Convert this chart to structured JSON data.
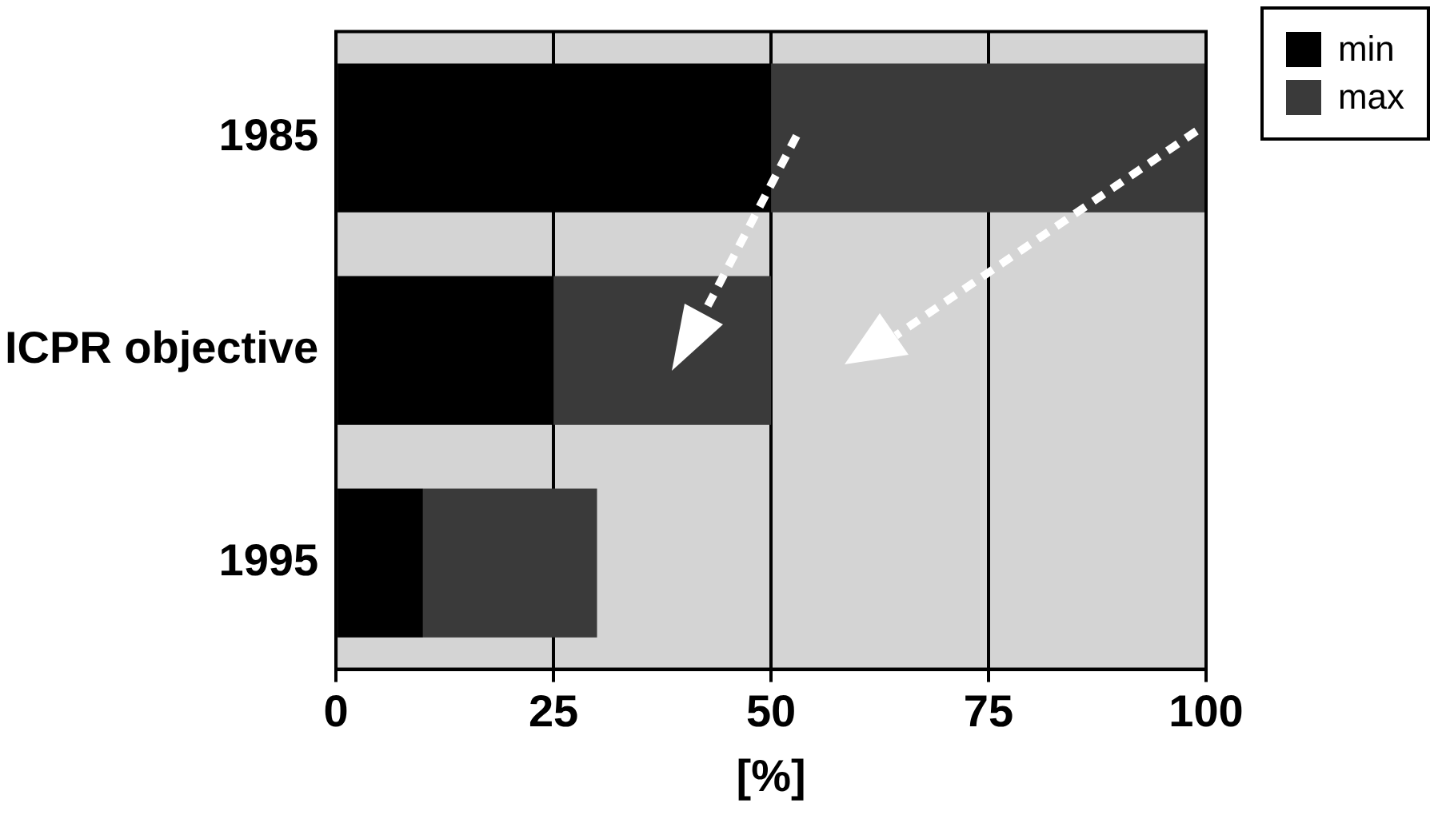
{
  "chart_data": {
    "type": "bar",
    "orientation": "horizontal",
    "stacked": true,
    "xlabel": "[%]",
    "categories": [
      "1985",
      "ICPR objective",
      "1995"
    ],
    "series": [
      {
        "name": "min",
        "color": "#000000",
        "values": [
          50,
          25,
          10
        ]
      },
      {
        "name": "max",
        "color": "#3a3a3a",
        "values": [
          50,
          25,
          20
        ]
      }
    ],
    "xlim": [
      0,
      100
    ],
    "xticks": [
      0,
      25,
      50,
      75,
      100
    ],
    "grid": "x",
    "legend": "top right"
  }
}
